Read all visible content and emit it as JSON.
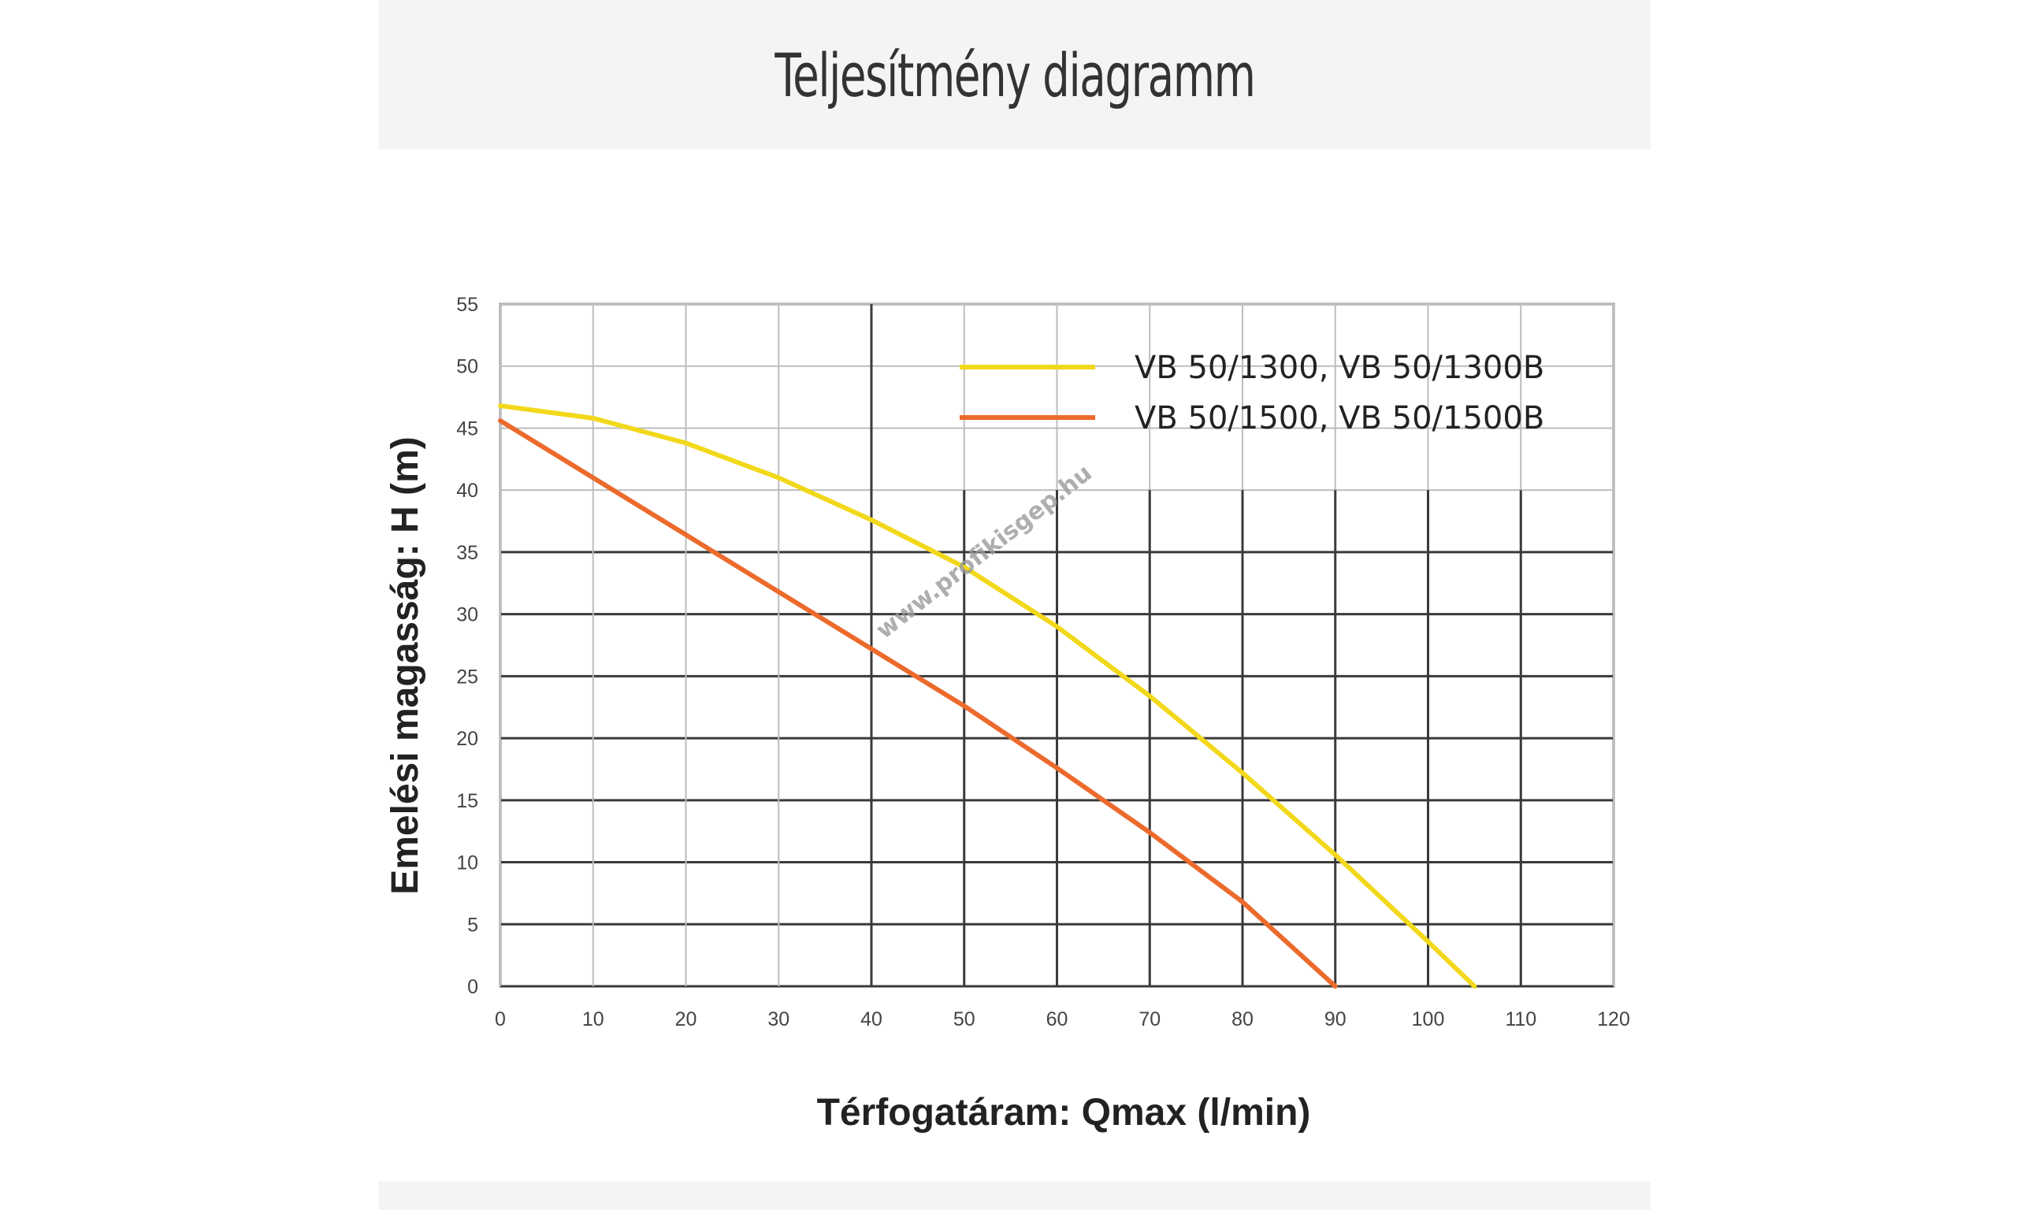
{
  "page": {
    "title": "Teljesítmény diagramm"
  },
  "chart_data": {
    "type": "line",
    "xlabel": "Térfogatáram: Qmax (l/min)",
    "ylabel": "Emelési magasság: H (m)",
    "xlim": [
      0,
      120
    ],
    "ylim": [
      0,
      55
    ],
    "x_ticks": [
      0,
      10,
      20,
      30,
      40,
      50,
      60,
      70,
      80,
      90,
      100,
      110,
      120
    ],
    "y_ticks": [
      0,
      5,
      10,
      15,
      20,
      25,
      30,
      35,
      40,
      45,
      50,
      55
    ],
    "grid": true,
    "legend_position": "top-right",
    "watermark": "www.profikisgep.hu",
    "series": [
      {
        "name": "VB 50/1300, VB 50/1300B",
        "color": "#f2d81a",
        "x": [
          0,
          10,
          20,
          30,
          40,
          50,
          60,
          70,
          80,
          90,
          100,
          105
        ],
        "y": [
          46.8,
          45.8,
          43.8,
          41.0,
          37.6,
          33.8,
          29.0,
          23.4,
          17.2,
          10.6,
          3.6,
          0
        ]
      },
      {
        "name": "VB 50/1500, VB 50/1500B",
        "color": "#ec6a2c",
        "x": [
          0,
          10,
          20,
          30,
          40,
          50,
          60,
          70,
          80,
          90
        ],
        "y": [
          45.6,
          41.0,
          36.4,
          31.8,
          27.2,
          22.6,
          17.6,
          12.4,
          6.8,
          0
        ]
      }
    ]
  }
}
